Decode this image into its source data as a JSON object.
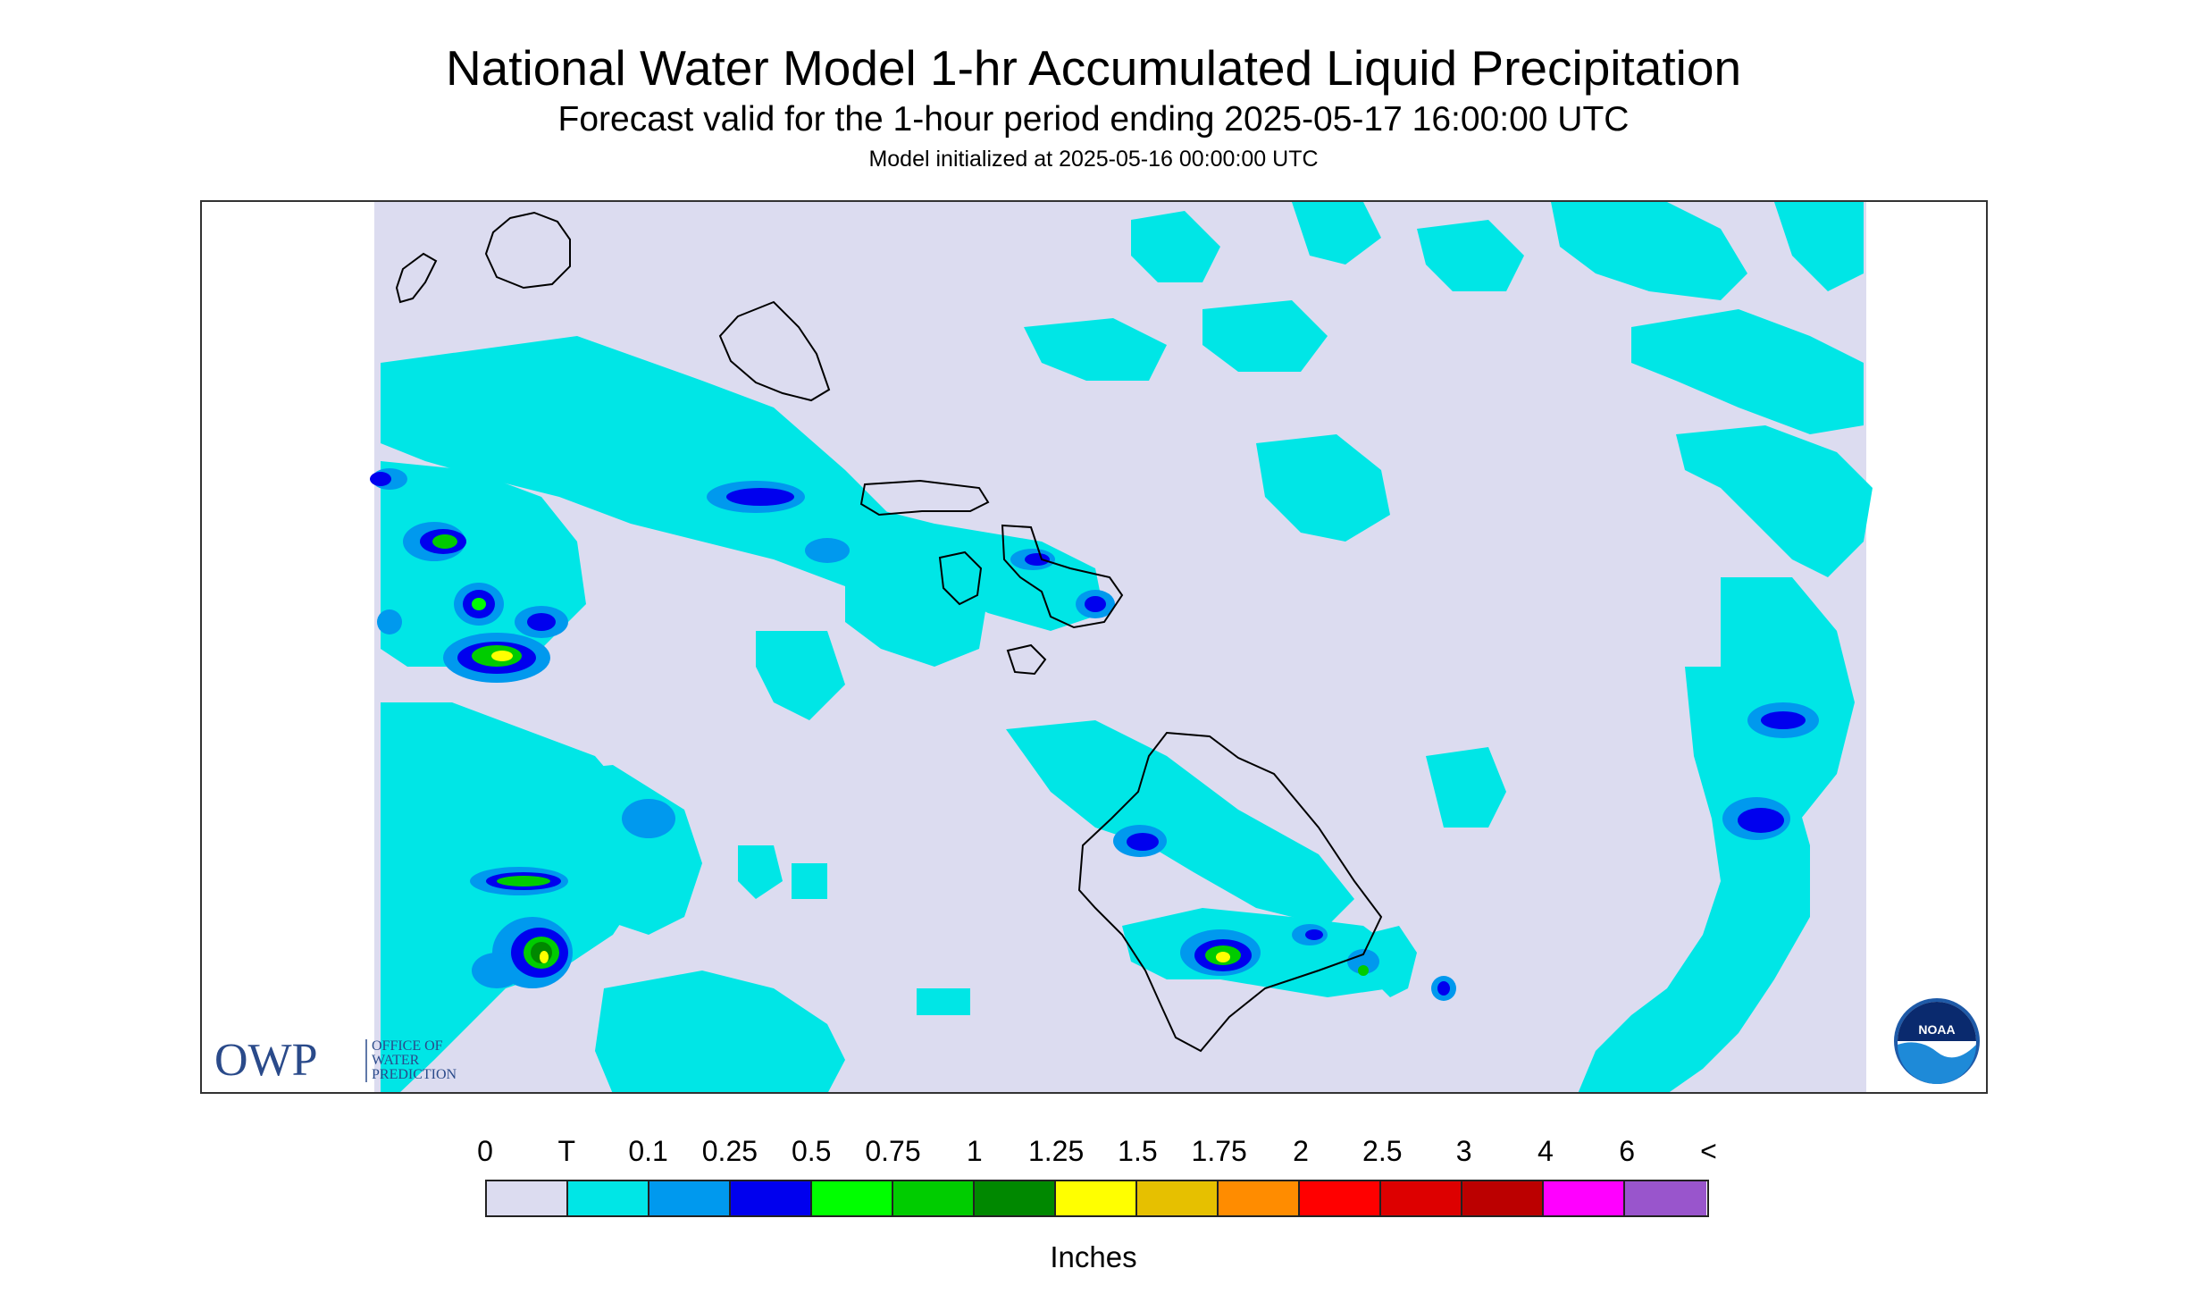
{
  "header": {
    "title": "National Water Model 1-hr Accumulated Liquid Precipitation",
    "subtitle": "Forecast valid for the 1-hour period ending 2025-05-17 16:00:00 UTC",
    "init": "Model initialized at 2025-05-16 00:00:00 UTC"
  },
  "legend": {
    "labels": [
      "0",
      "T",
      "0.1",
      "0.25",
      "0.5",
      "0.75",
      "1",
      "1.25",
      "1.5",
      "1.75",
      "2",
      "2.5",
      "3",
      "4",
      "6",
      "<"
    ],
    "colors": [
      "#dcdcf0",
      "#00e6e6",
      "#0099ee",
      "#0000ee",
      "#00ff00",
      "#00cc00",
      "#008800",
      "#ffff00",
      "#e6c000",
      "#ff8c00",
      "#ff0000",
      "#dd0000",
      "#bb0000",
      "#ff00ff",
      "#9955cc"
    ],
    "units": "Inches"
  },
  "logos": {
    "owp_mark": "OWP",
    "owp_line1": "OFFICE OF",
    "owp_line2": "WATER",
    "owp_line3": "PREDICTION",
    "noaa_mark": "NOAA"
  },
  "map": {
    "background_color": "#dcdcf0",
    "islands": [
      "Niihau",
      "Kauai",
      "Oahu",
      "Molokai",
      "Lanai",
      "Maui",
      "Kahoolawe",
      "Hawaii"
    ]
  }
}
